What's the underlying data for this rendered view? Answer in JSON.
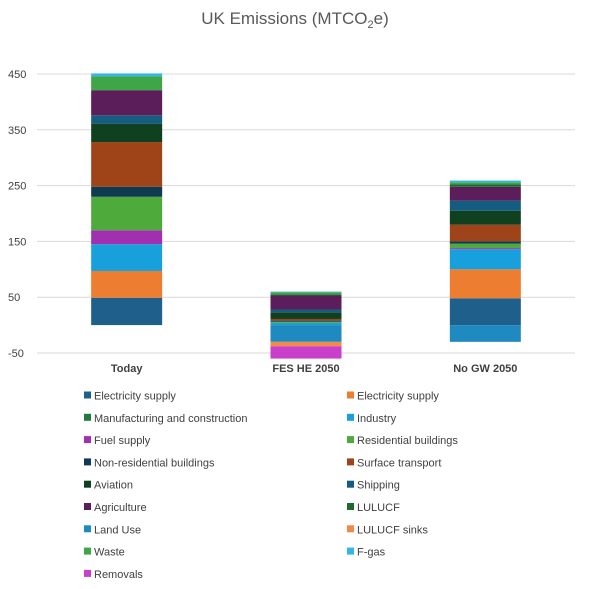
{
  "chart_data": {
    "type": "bar",
    "stacked": true,
    "title": "UK Emissions (MTCO",
    "title_sub": "2",
    "title_suffix": "e)",
    "categories": [
      "Today",
      "FES HE 2050",
      "No GW 2050"
    ],
    "y_ticks": [
      "-50",
      "50",
      "150",
      "250",
      "350",
      "450"
    ],
    "ylim": [
      -50,
      450
    ],
    "grid": true,
    "legend_position": "bottom",
    "series": [
      {
        "name": "Electricity supply",
        "color": "#1F5F8B",
        "values": [
          49,
          0,
          48
        ]
      },
      {
        "name": "Electricity supply",
        "color": "#ED7D31",
        "values": [
          48,
          0,
          52
        ]
      },
      {
        "name": "Manufacturing and construction",
        "color": "#1E7B3A",
        "values": [
          0,
          0,
          0
        ]
      },
      {
        "name": "Industry",
        "color": "#18A0DC",
        "values": [
          48,
          4,
          36
        ]
      },
      {
        "name": "Fuel supply",
        "color": "#A030B0",
        "values": [
          25,
          0,
          2
        ]
      },
      {
        "name": "Residential buildings",
        "color": "#4EAA3A",
        "values": [
          60,
          2,
          8
        ]
      },
      {
        "name": "Non-residential buildings",
        "color": "#0E3A52",
        "values": [
          18,
          2,
          4
        ]
      },
      {
        "name": "Surface transport",
        "color": "#9E4418",
        "values": [
          80,
          3,
          30
        ]
      },
      {
        "name": "Aviation",
        "color": "#0F4020",
        "values": [
          33,
          12,
          25
        ]
      },
      {
        "name": "Shipping",
        "color": "#155D80",
        "values": [
          15,
          5,
          18
        ]
      },
      {
        "name": "Agriculture",
        "color": "#5C1E5A",
        "values": [
          45,
          25,
          25
        ]
      },
      {
        "name": "LULUCF",
        "color": "#1E6B2E",
        "values": [
          0,
          2,
          4
        ]
      },
      {
        "name": "Land Use",
        "color": "#1F8AC0",
        "values": [
          0,
          -30,
          -30
        ]
      },
      {
        "name": "LULUCF sinks",
        "color": "#F08A4B",
        "values": [
          0,
          -8,
          0
        ]
      },
      {
        "name": "Waste",
        "color": "#3FA648",
        "values": [
          25,
          4,
          4
        ]
      },
      {
        "name": "F-gas",
        "color": "#33B5E5",
        "values": [
          5,
          1,
          3
        ]
      },
      {
        "name": "Removals",
        "color": "#C93FC9",
        "values": [
          0,
          -22,
          0
        ]
      }
    ]
  }
}
